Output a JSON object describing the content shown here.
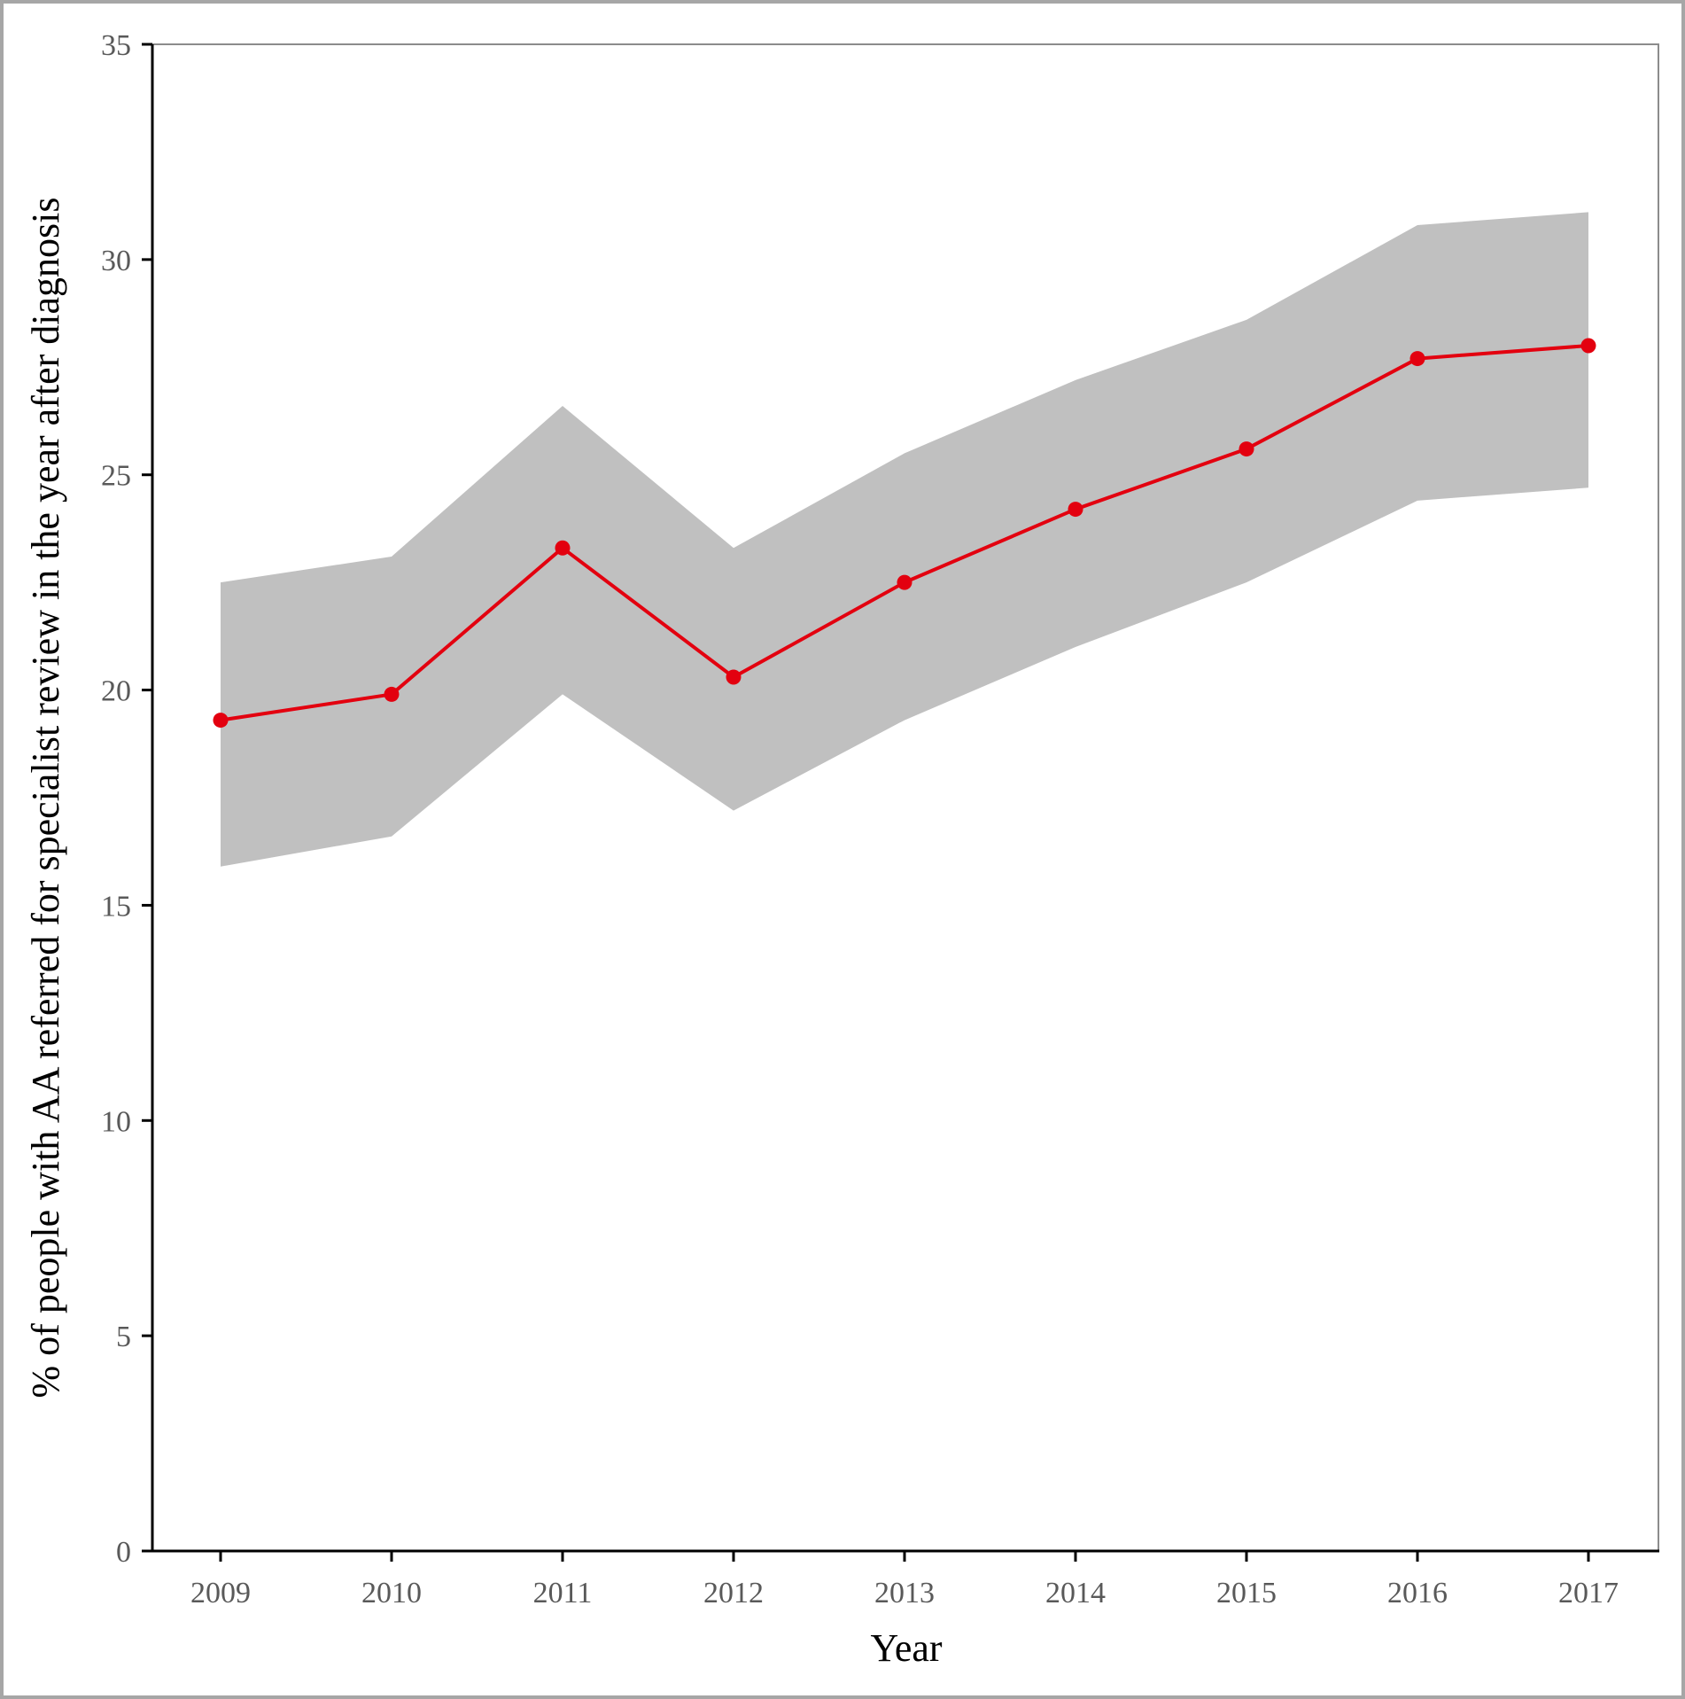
{
  "chart_data": {
    "type": "line",
    "title": "",
    "xlabel": "Year",
    "ylabel": "% of people with AA referred for specialist review in the year after diagnosis",
    "x": [
      "2009",
      "2010",
      "2011",
      "2012",
      "2013",
      "2014",
      "2015",
      "2016",
      "2017"
    ],
    "ylim": [
      0,
      35
    ],
    "yticks": [
      "0",
      "5",
      "10",
      "15",
      "20",
      "25",
      "30",
      "35"
    ],
    "grid": false,
    "legend": "none",
    "series": [
      {
        "values": [
          19.3,
          19.9,
          23.3,
          20.3,
          22.5,
          24.2,
          25.6,
          27.7,
          28.0
        ],
        "lower": [
          15.9,
          16.6,
          19.9,
          17.2,
          19.3,
          21.0,
          22.5,
          24.4,
          24.7
        ],
        "upper": [
          22.5,
          23.1,
          26.6,
          23.3,
          25.5,
          27.2,
          28.6,
          30.8,
          31.1
        ],
        "line_color": "#e3000f",
        "band_color": "#c0c0c0"
      }
    ]
  }
}
